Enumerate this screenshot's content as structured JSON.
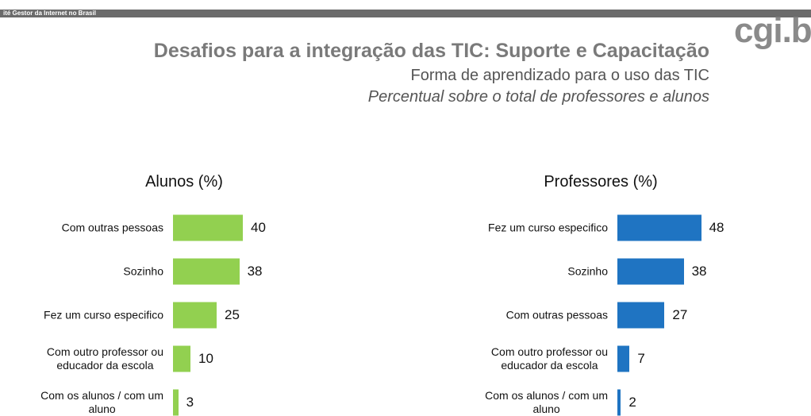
{
  "header": {
    "banner": "ité Gestor da Internet no Brasil",
    "logo": "cgi.br",
    "title": "Desafios para a integração das TIC: Suporte e Capacitação",
    "subtitle": "Forma de aprendizado para o uso das TIC",
    "note": "Percentual sobre o total de professores e alunos"
  },
  "chart_data": [
    {
      "type": "bar",
      "orientation": "horizontal",
      "title": "Alunos (%)",
      "categories": [
        "Com outras pessoas",
        "Sozinho",
        "Fez um curso especifico",
        "Com outro professor ou\neducador da escola",
        "Com os alunos / com um\naluno"
      ],
      "values": [
        40,
        38,
        25,
        10,
        3
      ],
      "color": "#92d050"
    },
    {
      "type": "bar",
      "orientation": "horizontal",
      "title": "Professores (%)",
      "categories": [
        "Fez um curso especifico",
        "Sozinho",
        "Com outras pessoas",
        "Com outro professor ou\neducador da escola",
        "Com os alunos / com um\naluno"
      ],
      "values": [
        48,
        38,
        27,
        7,
        2
      ],
      "color": "#1f74c2"
    }
  ]
}
